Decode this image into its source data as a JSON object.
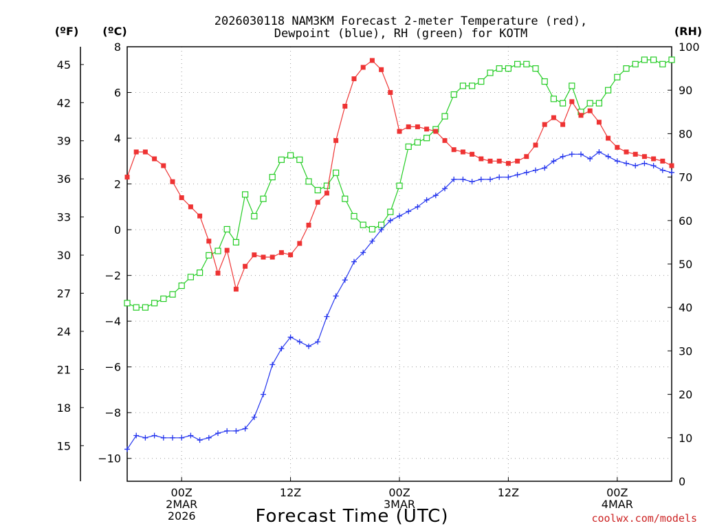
{
  "title_line1": "2026030118 NAM3KM Forecast 2-meter Temperature (red),",
  "title_line2": "Dewpoint (blue), RH (green) for KOTM",
  "credit": "coolwx.com/models",
  "colors": {
    "temperature": "#ee3333",
    "dewpoint": "#2233ee",
    "rh": "#22cc22",
    "grid": "#9a9a9a"
  },
  "chart_data": {
    "type": "line",
    "title": "2026030118 NAM3KM Forecast 2-meter Temperature (red), Dewpoint (blue), RH (green) for KOTM",
    "xlabel": "Forecast Time (UTC)",
    "x_unit": "forecast hour (0 = 2026-03-01 18Z)",
    "xlim": [
      0,
      60
    ],
    "grid": true,
    "x_ticks": [
      {
        "hour": 6,
        "lines": [
          "00Z",
          "2MAR",
          "2026"
        ]
      },
      {
        "hour": 18,
        "lines": [
          "12Z"
        ]
      },
      {
        "hour": 30,
        "lines": [
          "00Z",
          "3MAR"
        ]
      },
      {
        "hour": 42,
        "lines": [
          "12Z"
        ]
      },
      {
        "hour": 54,
        "lines": [
          "00Z",
          "4MAR"
        ]
      }
    ],
    "axes": {
      "celsius": {
        "label": "(ºC)",
        "range": [
          -11,
          8
        ],
        "ticks": [
          8,
          6,
          4,
          2,
          0,
          -2,
          -4,
          -6,
          -8,
          -10
        ]
      },
      "fahrenheit": {
        "label": "(ºF)",
        "ticks": [
          45,
          42,
          39,
          36,
          33,
          30,
          27,
          24,
          21,
          18,
          15
        ]
      },
      "rh": {
        "label": "(RH)",
        "range": [
          0,
          100
        ],
        "ticks": [
          100,
          90,
          80,
          70,
          60,
          50,
          40,
          30,
          20,
          10,
          0
        ]
      }
    },
    "x": [
      0,
      1,
      2,
      3,
      4,
      5,
      6,
      7,
      8,
      9,
      10,
      11,
      12,
      13,
      14,
      15,
      16,
      17,
      18,
      19,
      20,
      21,
      22,
      23,
      24,
      25,
      26,
      27,
      28,
      29,
      30,
      31,
      32,
      33,
      34,
      35,
      36,
      37,
      38,
      39,
      40,
      41,
      42,
      43,
      44,
      45,
      46,
      47,
      48,
      49,
      50,
      51,
      52,
      53,
      54,
      55,
      56,
      57,
      58,
      59,
      60
    ],
    "series": [
      {
        "name": "Temperature (red)",
        "unit": "°C",
        "axis": "celsius",
        "marker": "filled-square",
        "values": [
          2.3,
          3.4,
          3.4,
          3.1,
          2.8,
          2.1,
          1.4,
          1.0,
          0.6,
          -0.5,
          -1.9,
          -0.9,
          -2.6,
          -1.6,
          -1.1,
          -1.2,
          -1.2,
          -1.0,
          -1.1,
          -0.6,
          0.2,
          1.2,
          1.6,
          3.9,
          5.4,
          6.6,
          7.1,
          7.4,
          7.0,
          6.0,
          4.3,
          4.5,
          4.5,
          4.4,
          4.3,
          3.9,
          3.5,
          3.4,
          3.3,
          3.1,
          3.0,
          3.0,
          2.9,
          3.0,
          3.2,
          3.7,
          4.6,
          4.9,
          4.6,
          5.6,
          5.0,
          5.2,
          4.7,
          4.0,
          3.6,
          3.4,
          3.3,
          3.2,
          3.1,
          3.0,
          2.8
        ]
      },
      {
        "name": "Dewpoint (blue)",
        "unit": "°C",
        "axis": "celsius",
        "marker": "plus",
        "values": [
          -9.6,
          -9.0,
          -9.1,
          -9.0,
          -9.1,
          -9.1,
          -9.1,
          -9.0,
          -9.2,
          -9.1,
          -8.9,
          -8.8,
          -8.8,
          -8.7,
          -8.2,
          -7.2,
          -5.9,
          -5.2,
          -4.7,
          -4.9,
          -5.1,
          -4.9,
          -3.8,
          -2.9,
          -2.2,
          -1.4,
          -1.0,
          -0.5,
          0.0,
          0.4,
          0.6,
          0.8,
          1.0,
          1.3,
          1.5,
          1.8,
          2.2,
          2.2,
          2.1,
          2.2,
          2.2,
          2.3,
          2.3,
          2.4,
          2.5,
          2.6,
          2.7,
          3.0,
          3.2,
          3.3,
          3.3,
          3.1,
          3.4,
          3.2,
          3.0,
          2.9,
          2.8,
          2.9,
          2.8,
          2.6,
          2.5
        ]
      },
      {
        "name": "RH (green)",
        "unit": "%",
        "axis": "rh",
        "marker": "open-square",
        "values": [
          41,
          40,
          40,
          41,
          42,
          43,
          45,
          47,
          48,
          52,
          53,
          58,
          55,
          66,
          61,
          65,
          70,
          74,
          75,
          74,
          69,
          67,
          68,
          71,
          65,
          61,
          59,
          58,
          59,
          62,
          68,
          77,
          78,
          79,
          81,
          84,
          89,
          91,
          91,
          92,
          94,
          95,
          95,
          96,
          96,
          95,
          92,
          88,
          87,
          91,
          85,
          87,
          87,
          90,
          93,
          95,
          96,
          97,
          97,
          96,
          97
        ]
      }
    ]
  }
}
